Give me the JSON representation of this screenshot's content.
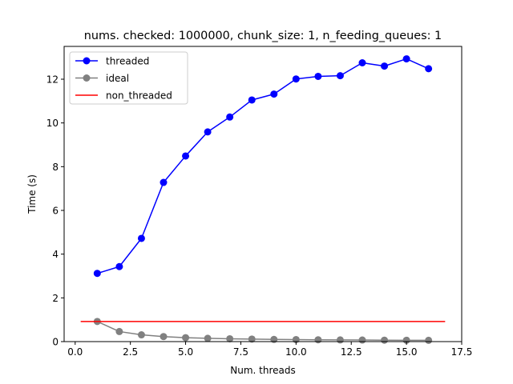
{
  "chart_data": {
    "type": "line",
    "title": "nums. checked: 1000000, chunk_size: 1, n_feeding_queues: 1",
    "xlabel": "Num. threads",
    "ylabel": "Time (s)",
    "xlim": [
      -0.5,
      17.5
    ],
    "ylim": [
      0,
      13.5
    ],
    "xticks": [
      0.0,
      2.5,
      5.0,
      7.5,
      10.0,
      12.5,
      15.0,
      17.5
    ],
    "xtick_labels": [
      "0.0",
      "2.5",
      "5.0",
      "7.5",
      "10.0",
      "12.5",
      "15.0",
      "17.5"
    ],
    "yticks": [
      0,
      2,
      4,
      6,
      8,
      10,
      12
    ],
    "ytick_labels": [
      "0",
      "2",
      "4",
      "6",
      "8",
      "10",
      "12"
    ],
    "grid": false,
    "legend_position": "top-left",
    "series": [
      {
        "name": "threaded",
        "color": "#0000ff",
        "marker": "circle",
        "x": [
          1,
          2,
          3,
          4,
          5,
          6,
          7,
          8,
          9,
          10,
          11,
          12,
          13,
          14,
          15,
          16
        ],
        "y": [
          3.12,
          3.43,
          4.72,
          7.28,
          8.49,
          9.59,
          10.27,
          11.05,
          11.32,
          12.01,
          12.13,
          12.16,
          12.75,
          12.6,
          12.93,
          12.48
        ]
      },
      {
        "name": "ideal",
        "color": "#808080",
        "marker": "circle",
        "x": [
          1,
          2,
          3,
          4,
          5,
          6,
          7,
          8,
          9,
          10,
          11,
          12,
          13,
          14,
          15,
          16
        ],
        "y": [
          0.92,
          0.46,
          0.31,
          0.23,
          0.18,
          0.15,
          0.13,
          0.115,
          0.1,
          0.092,
          0.084,
          0.077,
          0.071,
          0.066,
          0.061,
          0.058
        ]
      },
      {
        "name": "non_threaded",
        "color": "#ff0000",
        "marker": "none",
        "x": [
          0.25,
          16.75
        ],
        "y": [
          0.92,
          0.92
        ]
      }
    ]
  }
}
